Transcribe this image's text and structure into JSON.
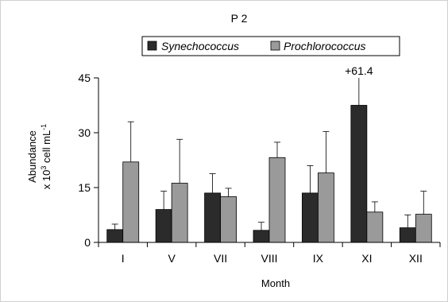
{
  "chart_data": {
    "type": "bar",
    "title": "P 2",
    "xlabel": "Month",
    "ylabel_line1": "Abundance",
    "ylabel_line2_pre": "x 10",
    "ylabel_line2_sup1": "3",
    "ylabel_line2_mid": " cell mL",
    "ylabel_line2_sup2": "-1",
    "ylim": [
      0,
      45
    ],
    "yticks": [
      "0",
      "15",
      "30",
      "45"
    ],
    "ytick_values": [
      0,
      15,
      30,
      45
    ],
    "categories": [
      "I",
      "V",
      "VII",
      "VIII",
      "IX",
      "XI",
      "XII"
    ],
    "series": [
      {
        "name": "Synechococcus",
        "color": "#2b2b2b",
        "values": [
          3.5,
          9,
          13.5,
          3.3,
          13.5,
          37.5,
          4
        ],
        "errors": [
          1.5,
          5,
          5.3,
          2.2,
          7.5,
          8,
          3.5
        ]
      },
      {
        "name": "Prochlorococcus",
        "color": "#9a9a9a",
        "values": [
          22,
          16.2,
          12.5,
          23.2,
          19,
          8.3,
          7.7
        ],
        "errors": [
          11,
          12,
          2.3,
          4.2,
          11.3,
          2.8,
          6.3
        ]
      }
    ],
    "annotation": "+61.4",
    "grid": false,
    "legend_position": "top"
  }
}
